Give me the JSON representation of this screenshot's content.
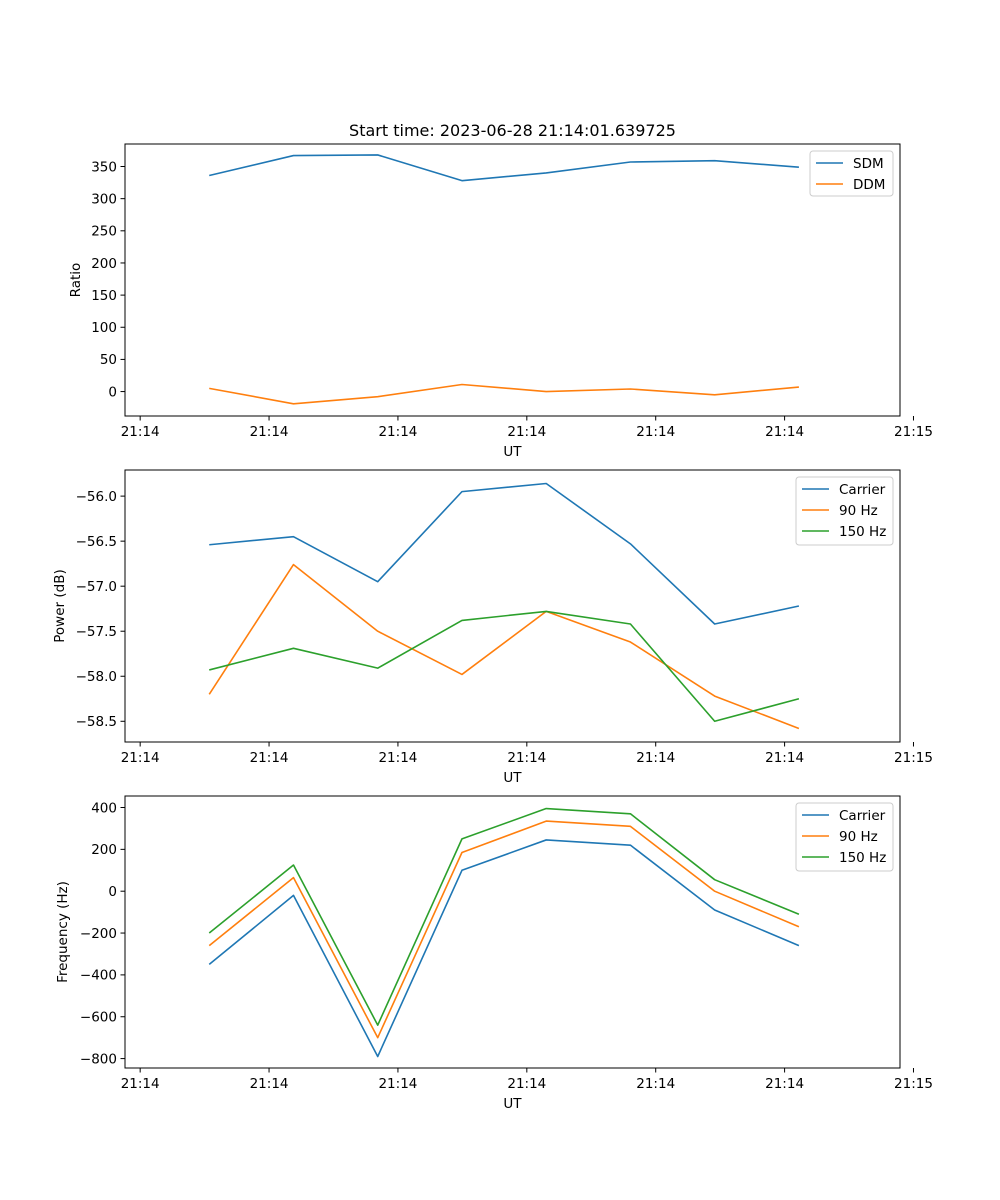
{
  "figure": {
    "title": "Start time: 2023-06-28 21:14:01.639725"
  },
  "chart_data": [
    {
      "type": "line",
      "title": "Start time: 2023-06-28 21:14:01.639725",
      "xlabel": "UT",
      "ylabel": "Ratio",
      "x_tick_labels": [
        "21:14",
        "21:14",
        "21:14",
        "21:14",
        "21:14",
        "21:14",
        "21:15"
      ],
      "x": [
        1,
        2,
        3,
        4,
        5,
        6,
        7,
        8
      ],
      "xlim": [
        0,
        9.2
      ],
      "x_ticks": [
        0.18,
        1.71,
        3.24,
        4.77,
        6.3,
        7.83,
        9.36
      ],
      "ylim": [
        -38,
        385
      ],
      "y_ticks": [
        0,
        50,
        100,
        150,
        200,
        250,
        300,
        350
      ],
      "grid": false,
      "legend_position": "top-right",
      "series": [
        {
          "name": "SDM",
          "color": "#1f77b4",
          "values": [
            336,
            367,
            368,
            328,
            340,
            357,
            359,
            349
          ]
        },
        {
          "name": "DDM",
          "color": "#ff7f0e",
          "values": [
            5,
            -19,
            -8,
            11,
            0,
            4,
            -5,
            7
          ]
        }
      ]
    },
    {
      "type": "line",
      "title": "",
      "xlabel": "UT",
      "ylabel": "Power (dB)",
      "x_tick_labels": [
        "21:14",
        "21:14",
        "21:14",
        "21:14",
        "21:14",
        "21:14",
        "21:15"
      ],
      "x": [
        1,
        2,
        3,
        4,
        5,
        6,
        7,
        8
      ],
      "xlim": [
        0,
        9.2
      ],
      "x_ticks": [
        0.18,
        1.71,
        3.24,
        4.77,
        6.3,
        7.83,
        9.36
      ],
      "ylim": [
        -58.73,
        -55.71
      ],
      "y_ticks": [
        -58.5,
        -58.0,
        -57.5,
        -57.0,
        -56.5,
        -56.0
      ],
      "y_tick_labels": [
        "−58.5",
        "−58.0",
        "−57.5",
        "−57.0",
        "−56.5",
        "−56.0"
      ],
      "grid": false,
      "legend_position": "top-right",
      "series": [
        {
          "name": "Carrier",
          "color": "#1f77b4",
          "values": [
            -56.54,
            -56.45,
            -56.95,
            -55.95,
            -55.86,
            -56.53,
            -57.42,
            -57.22
          ]
        },
        {
          "name": "90 Hz",
          "color": "#ff7f0e",
          "values": [
            -58.2,
            -56.76,
            -57.5,
            -57.98,
            -57.28,
            -57.62,
            -58.22,
            -58.58
          ]
        },
        {
          "name": "150 Hz",
          "color": "#2ca02c",
          "values": [
            -57.93,
            -57.69,
            -57.91,
            -57.38,
            -57.28,
            -57.42,
            -58.5,
            -58.25
          ]
        }
      ]
    },
    {
      "type": "line",
      "title": "",
      "xlabel": "UT",
      "ylabel": "Frequency (Hz)",
      "x_tick_labels": [
        "21:14",
        "21:14",
        "21:14",
        "21:14",
        "21:14",
        "21:14",
        "21:15"
      ],
      "x": [
        1,
        2,
        3,
        4,
        5,
        6,
        7,
        8
      ],
      "xlim": [
        0,
        9.2
      ],
      "x_ticks": [
        0.18,
        1.71,
        3.24,
        4.77,
        6.3,
        7.83,
        9.36
      ],
      "ylim": [
        -845,
        455
      ],
      "y_ticks": [
        -800,
        -600,
        -400,
        -200,
        0,
        200,
        400
      ],
      "y_tick_labels": [
        "−800",
        "−600",
        "−400",
        "−200",
        "0",
        "200",
        "400"
      ],
      "grid": false,
      "legend_position": "top-right",
      "series": [
        {
          "name": "Carrier",
          "color": "#1f77b4",
          "values": [
            -350,
            -20,
            -790,
            100,
            245,
            220,
            -90,
            -260
          ]
        },
        {
          "name": "90 Hz",
          "color": "#ff7f0e",
          "values": [
            -260,
            65,
            -700,
            185,
            335,
            310,
            0,
            -170
          ]
        },
        {
          "name": "150 Hz",
          "color": "#2ca02c",
          "values": [
            -200,
            125,
            -640,
            250,
            395,
            370,
            55,
            -110
          ]
        }
      ]
    }
  ]
}
